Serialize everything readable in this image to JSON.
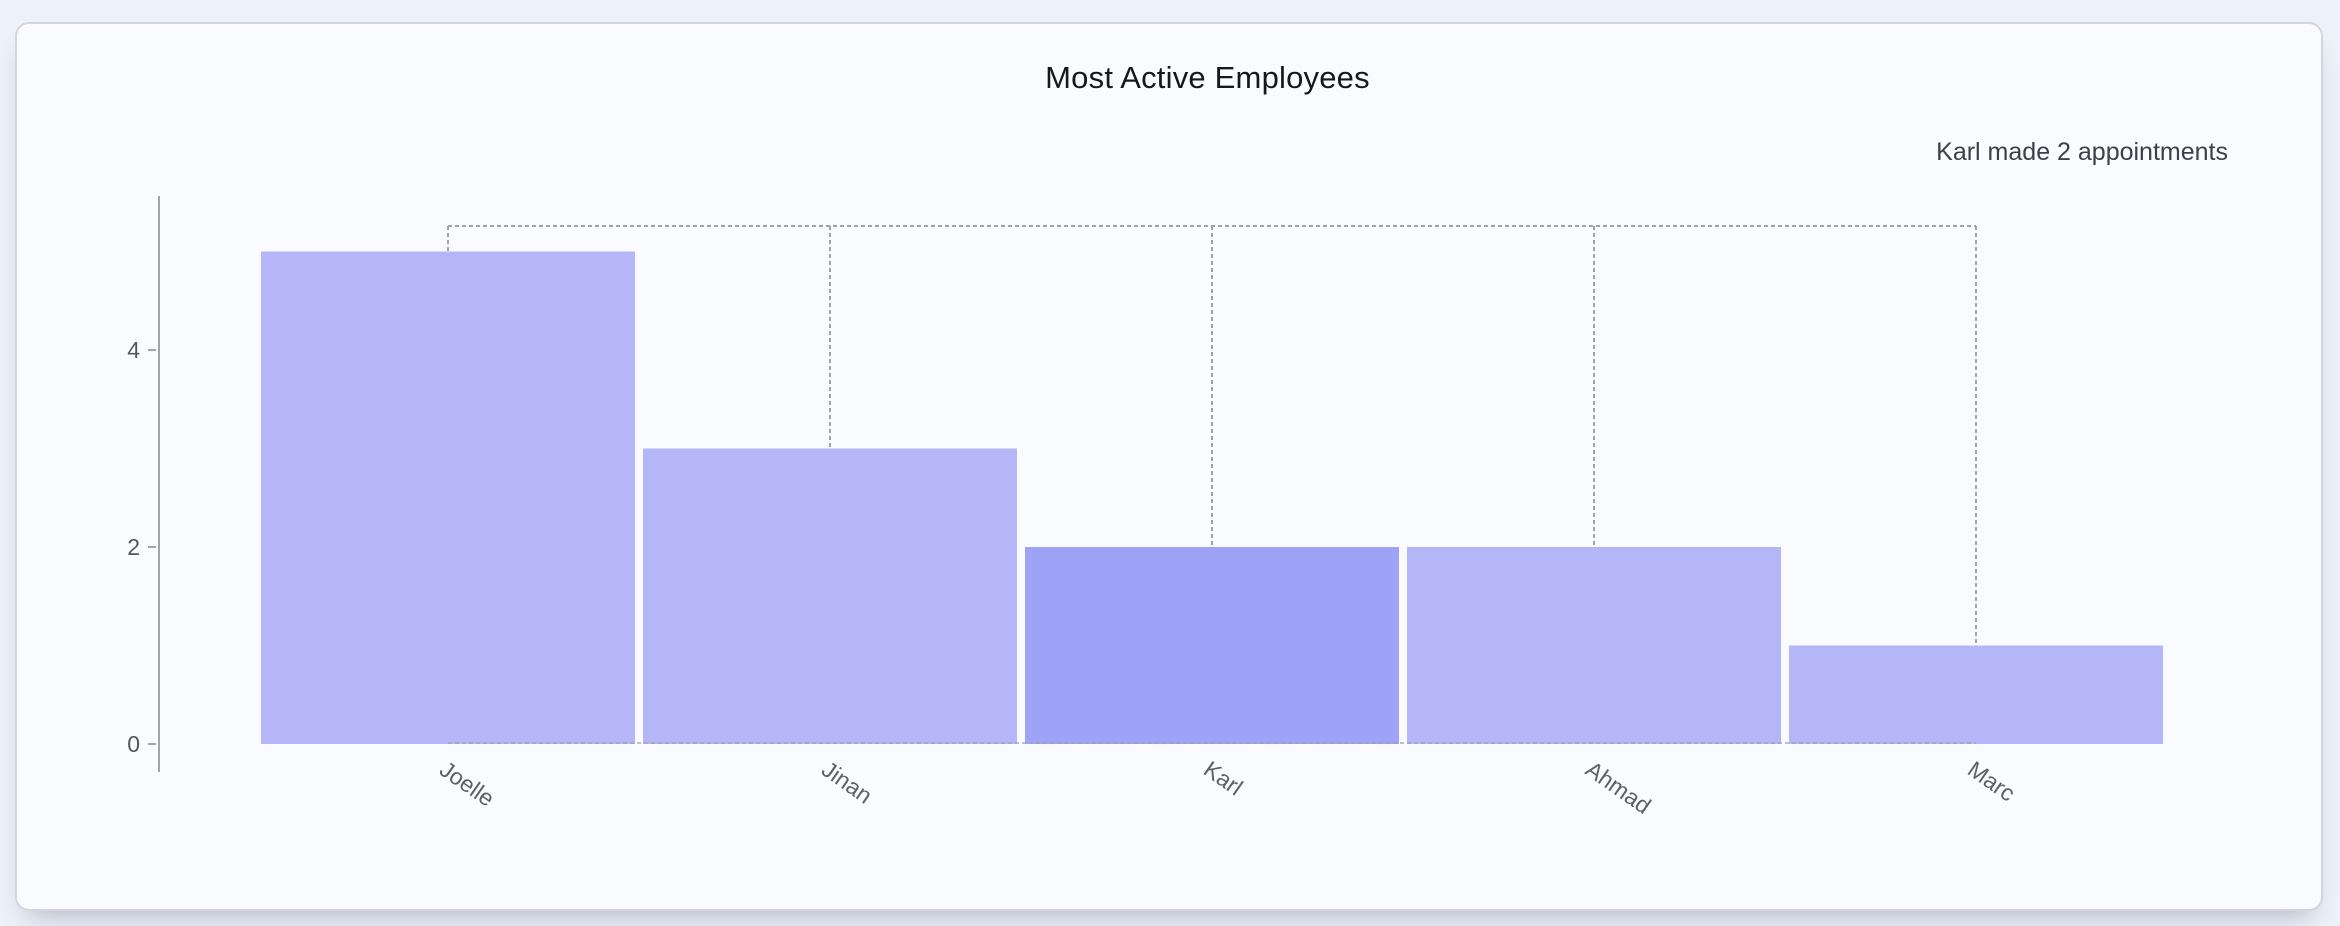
{
  "card": {
    "title": "Most Active Employees",
    "subtitle": "Karl made 2 appointments"
  },
  "chart_data": {
    "type": "bar",
    "title": "Most Active Employees",
    "annotation": "Karl made 2 appointments",
    "categories": [
      "Joelle",
      "Jinan",
      "Karl",
      "Ahmad",
      "Marc"
    ],
    "values": [
      5,
      3,
      2,
      2,
      1
    ],
    "highlight": {
      "category": "Karl",
      "index": 2,
      "value": 2
    },
    "xlabel": "",
    "ylabel": "",
    "yticks": [
      0,
      2,
      4
    ],
    "ylim": [
      0,
      5.25
    ],
    "grid": false,
    "legend": false,
    "category_label_rotation_deg": 35,
    "colors": {
      "bar": "#b4b6f8",
      "bar_highlighted": "#9fa3f7",
      "axis": "#a2a3ab",
      "tick_label": "#55575e",
      "category_label": "#5e6066",
      "dashed_connector": "#a0a1a9",
      "card_background": "#fafbfe",
      "page_background": "#edf1f9",
      "card_border": "#d3d5dd"
    }
  }
}
